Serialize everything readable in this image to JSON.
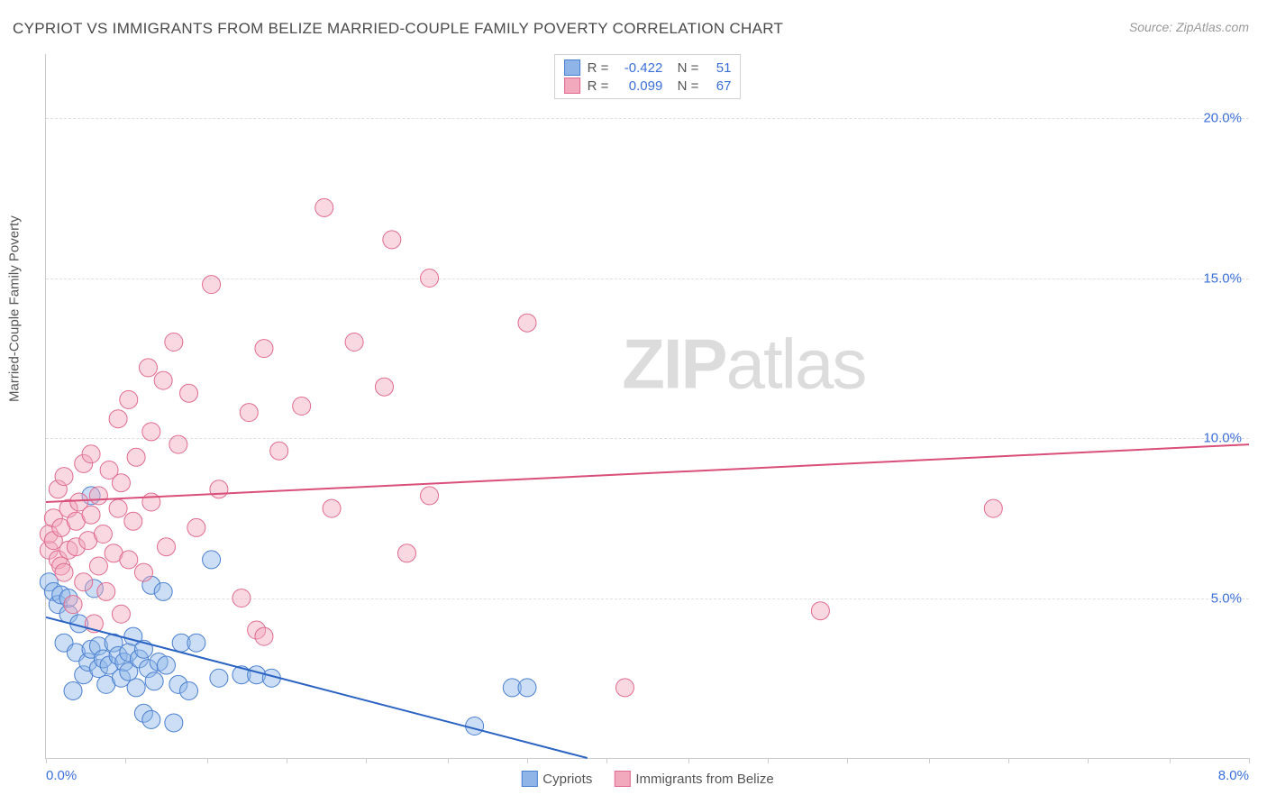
{
  "title": "CYPRIOT VS IMMIGRANTS FROM BELIZE MARRIED-COUPLE FAMILY POVERTY CORRELATION CHART",
  "source": "Source: ZipAtlas.com",
  "watermark_bold": "ZIP",
  "watermark_light": "atlas",
  "y_axis_title": "Married-Couple Family Poverty",
  "chart": {
    "type": "scatter",
    "xlim": [
      0,
      8
    ],
    "ylim": [
      0,
      22
    ],
    "x_ticks": [
      0,
      0.53,
      1.07,
      1.6,
      2.13,
      2.67,
      3.2,
      3.73,
      4.27,
      4.8,
      5.33,
      5.87,
      6.4,
      6.93,
      7.47,
      8
    ],
    "x_tick_labels": {
      "0": "0.0%",
      "8": "8.0%"
    },
    "y_gridlines": [
      5,
      10,
      15,
      20
    ],
    "y_tick_labels": {
      "5": "5.0%",
      "10": "10.0%",
      "15": "15.0%",
      "20": "20.0%"
    },
    "grid_color": "#e0e0e0",
    "background_color": "#ffffff",
    "marker_radius": 10,
    "marker_opacity": 0.45,
    "line_width": 2,
    "series": [
      {
        "name": "Cypriots",
        "fill": "#8fb5e8",
        "stroke": "#4a7fd0",
        "line_color": "#2b63c2",
        "R": "-0.422",
        "N": "51",
        "trend": {
          "x1": 0,
          "y1": 4.4,
          "x2": 3.6,
          "y2": 0
        },
        "points": [
          [
            0.02,
            5.5
          ],
          [
            0.05,
            5.2
          ],
          [
            0.08,
            4.8
          ],
          [
            0.1,
            5.1
          ],
          [
            0.12,
            3.6
          ],
          [
            0.15,
            4.5
          ],
          [
            0.15,
            5.0
          ],
          [
            0.18,
            2.1
          ],
          [
            0.2,
            3.3
          ],
          [
            0.22,
            4.2
          ],
          [
            0.25,
            2.6
          ],
          [
            0.28,
            3.0
          ],
          [
            0.3,
            3.4
          ],
          [
            0.32,
            5.3
          ],
          [
            0.35,
            2.8
          ],
          [
            0.35,
            3.5
          ],
          [
            0.38,
            3.1
          ],
          [
            0.4,
            2.3
          ],
          [
            0.42,
            2.9
          ],
          [
            0.45,
            3.6
          ],
          [
            0.48,
            3.2
          ],
          [
            0.5,
            2.5
          ],
          [
            0.52,
            3.0
          ],
          [
            0.55,
            2.7
          ],
          [
            0.55,
            3.3
          ],
          [
            0.58,
            3.8
          ],
          [
            0.6,
            2.2
          ],
          [
            0.62,
            3.1
          ],
          [
            0.65,
            1.4
          ],
          [
            0.65,
            3.4
          ],
          [
            0.68,
            2.8
          ],
          [
            0.7,
            1.2
          ],
          [
            0.7,
            5.4
          ],
          [
            0.72,
            2.4
          ],
          [
            0.75,
            3.0
          ],
          [
            0.78,
            5.2
          ],
          [
            0.8,
            2.9
          ],
          [
            0.85,
            1.1
          ],
          [
            0.88,
            2.3
          ],
          [
            0.9,
            3.6
          ],
          [
            0.95,
            2.1
          ],
          [
            1.0,
            3.6
          ],
          [
            1.1,
            6.2
          ],
          [
            1.15,
            2.5
          ],
          [
            1.3,
            2.6
          ],
          [
            1.4,
            2.6
          ],
          [
            1.5,
            2.5
          ],
          [
            2.85,
            1.0
          ],
          [
            3.1,
            2.2
          ],
          [
            3.2,
            2.2
          ],
          [
            0.3,
            8.2
          ]
        ]
      },
      {
        "name": "Immigrants from Belize",
        "fill": "#f2a8bd",
        "stroke": "#e06b8f",
        "line_color": "#d94f7a",
        "R": "0.099",
        "N": "67",
        "trend": {
          "x1": 0,
          "y1": 8.0,
          "x2": 8,
          "y2": 9.8
        },
        "points": [
          [
            0.02,
            6.5
          ],
          [
            0.02,
            7.0
          ],
          [
            0.05,
            6.8
          ],
          [
            0.05,
            7.5
          ],
          [
            0.08,
            6.2
          ],
          [
            0.08,
            8.4
          ],
          [
            0.1,
            6.0
          ],
          [
            0.1,
            7.2
          ],
          [
            0.12,
            5.8
          ],
          [
            0.12,
            8.8
          ],
          [
            0.15,
            6.5
          ],
          [
            0.15,
            7.8
          ],
          [
            0.18,
            4.8
          ],
          [
            0.2,
            6.6
          ],
          [
            0.2,
            7.4
          ],
          [
            0.22,
            8.0
          ],
          [
            0.25,
            5.5
          ],
          [
            0.25,
            9.2
          ],
          [
            0.28,
            6.8
          ],
          [
            0.3,
            7.6
          ],
          [
            0.3,
            9.5
          ],
          [
            0.32,
            4.2
          ],
          [
            0.35,
            6.0
          ],
          [
            0.35,
            8.2
          ],
          [
            0.38,
            7.0
          ],
          [
            0.4,
            5.2
          ],
          [
            0.42,
            9.0
          ],
          [
            0.45,
            6.4
          ],
          [
            0.48,
            7.8
          ],
          [
            0.48,
            10.6
          ],
          [
            0.5,
            4.5
          ],
          [
            0.5,
            8.6
          ],
          [
            0.55,
            6.2
          ],
          [
            0.55,
            11.2
          ],
          [
            0.58,
            7.4
          ],
          [
            0.6,
            9.4
          ],
          [
            0.65,
            5.8
          ],
          [
            0.68,
            12.2
          ],
          [
            0.7,
            8.0
          ],
          [
            0.7,
            10.2
          ],
          [
            0.78,
            11.8
          ],
          [
            0.8,
            6.6
          ],
          [
            0.85,
            13.0
          ],
          [
            0.88,
            9.8
          ],
          [
            0.95,
            11.4
          ],
          [
            1.0,
            7.2
          ],
          [
            1.1,
            14.8
          ],
          [
            1.15,
            8.4
          ],
          [
            1.3,
            5.0
          ],
          [
            1.35,
            10.8
          ],
          [
            1.4,
            4.0
          ],
          [
            1.45,
            12.8
          ],
          [
            1.55,
            9.6
          ],
          [
            1.7,
            11.0
          ],
          [
            1.85,
            17.2
          ],
          [
            1.9,
            7.8
          ],
          [
            2.05,
            13.0
          ],
          [
            2.25,
            11.6
          ],
          [
            2.3,
            16.2
          ],
          [
            2.4,
            6.4
          ],
          [
            2.55,
            15.0
          ],
          [
            2.55,
            8.2
          ],
          [
            3.2,
            13.6
          ],
          [
            3.85,
            2.2
          ],
          [
            5.15,
            4.6
          ],
          [
            6.3,
            7.8
          ],
          [
            1.45,
            3.8
          ]
        ]
      }
    ]
  },
  "legend_bottom": [
    {
      "label": "Cypriots",
      "fill": "#8fb5e8",
      "stroke": "#4a7fd0"
    },
    {
      "label": "Immigrants from Belize",
      "fill": "#f2a8bd",
      "stroke": "#e06b8f"
    }
  ]
}
